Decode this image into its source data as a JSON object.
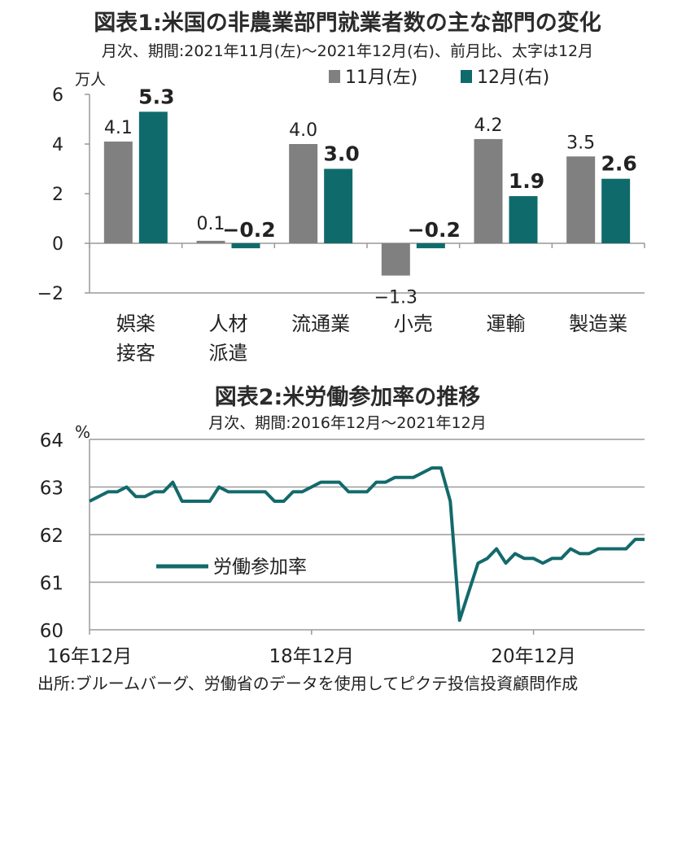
{
  "chart_data": [
    {
      "type": "bar",
      "title": "図表1:米国の非農業部門就業者数の主な部門の変化",
      "subtitle": "月次、期間:2021年11月(左)～2021年12月(右)、前月比、太字は12月",
      "ylabel": "万人",
      "ylim": [
        -2,
        6
      ],
      "yticks": [
        "6",
        "4",
        "2",
        "0",
        "−2"
      ],
      "ytick_values": [
        6,
        4,
        2,
        0,
        -2
      ],
      "legend_position": "top-right",
      "categories": [
        [
          "娯楽",
          "接客"
        ],
        [
          "人材",
          "派遣"
        ],
        [
          "流通業"
        ],
        [
          "小売"
        ],
        [
          "運輸"
        ],
        [
          "製造業"
        ]
      ],
      "series": [
        {
          "name": "11月(左)",
          "color": "#808080",
          "values": [
            4.1,
            0.1,
            4.0,
            -1.3,
            4.2,
            3.5
          ],
          "labels": [
            "4.1",
            "0.1",
            "4.0",
            "−1.3",
            "4.2",
            "3.5"
          ]
        },
        {
          "name": "12月(右)",
          "color": "#0f6b6b",
          "values": [
            5.3,
            -0.2,
            3.0,
            -0.2,
            1.9,
            2.6
          ],
          "labels": [
            "5.3",
            "−0.2",
            "3.0",
            "−0.2",
            "1.9",
            "2.6"
          ]
        }
      ]
    },
    {
      "type": "line",
      "title": "図表2:米労働参加率の推移",
      "subtitle": "月次、期間:2016年12月～2021年12月",
      "ylabel": "%",
      "ylim": [
        60,
        64
      ],
      "yticks": [
        "64",
        "63",
        "62",
        "61",
        "60"
      ],
      "ytick_values": [
        64,
        63,
        62,
        61,
        60
      ],
      "xticks": [
        "16年12月",
        "18年12月",
        "20年12月"
      ],
      "xtick_months": [
        "2016-12",
        "2018-12",
        "2020-12"
      ],
      "x_start": "2016-12",
      "x_end": "2021-12",
      "grid": true,
      "legend_position": "center-left",
      "series": [
        {
          "name": "労働参加率",
          "color": "#13696b",
          "values": [
            62.7,
            62.8,
            62.9,
            62.9,
            63.0,
            62.8,
            62.8,
            62.9,
            62.9,
            63.1,
            62.7,
            62.7,
            62.7,
            62.7,
            63.0,
            62.9,
            62.9,
            62.9,
            62.9,
            62.9,
            62.7,
            62.7,
            62.9,
            62.9,
            63.0,
            63.1,
            63.1,
            63.1,
            62.9,
            62.9,
            62.9,
            63.1,
            63.1,
            63.2,
            63.2,
            63.2,
            63.3,
            63.4,
            63.4,
            62.7,
            60.2,
            60.8,
            61.4,
            61.5,
            61.7,
            61.4,
            61.6,
            61.5,
            61.5,
            61.4,
            61.5,
            61.5,
            61.7,
            61.6,
            61.6,
            61.7,
            61.7,
            61.7,
            61.7,
            61.9,
            61.9
          ]
        }
      ]
    }
  ],
  "source": "出所:ブルームバーグ、労働省のデータを使用してピクテ投信投資顧問作成"
}
